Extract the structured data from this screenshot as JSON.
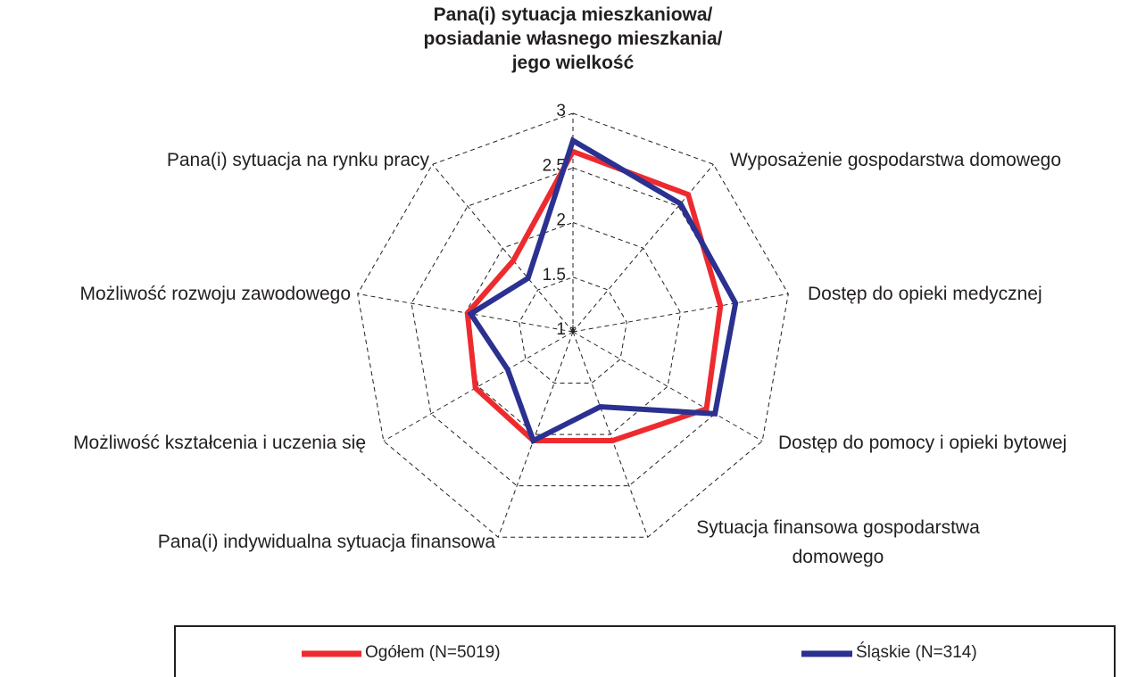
{
  "chart_data": {
    "type": "radar",
    "categories": [
      "Pana(i) sytuacja mieszkaniowa/\nposiadanie własnego mieszkania/\njego wielkość",
      "Wyposażenie gospodarstwa domowego",
      "Dostęp do opieki medycznej",
      "Dostęp do pomocy i opieki bytowej",
      "Sytuacja finansowa gospodarstwa\ndomowego",
      "Pana(i) indywidualna sytuacja finansowa",
      "Możliwość kształcenia i uczenia się",
      "Możliwość rozwoju zawodowego",
      "Pana(i) sytuacja na rynku pracy"
    ],
    "series": [
      {
        "name": "Ogółem (N=5019)",
        "color": "#ed2b2f",
        "values": [
          2.65,
          2.64,
          2.37,
          2.41,
          2.06,
          2.06,
          2.03,
          1.98,
          1.85
        ]
      },
      {
        "name": "Śląskie (N=314)",
        "color": "#2b3190",
        "values": [
          2.75,
          2.53,
          2.51,
          2.5,
          1.73,
          2.06,
          1.69,
          1.95,
          1.64
        ]
      }
    ],
    "ylim": [
      1,
      3
    ],
    "yticks": [
      1,
      1.5,
      2,
      2.5,
      3
    ],
    "grid": true
  }
}
